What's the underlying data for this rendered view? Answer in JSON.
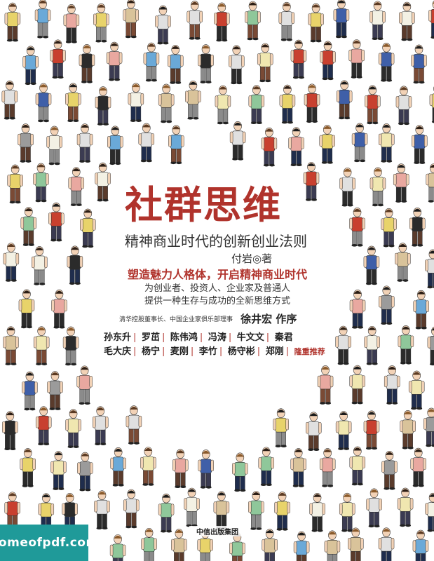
{
  "book": {
    "title": "社群思维",
    "subtitle": "精神商业时代的创新创业法则",
    "author_line": "付岩◎著",
    "tagline": "塑造魅力人格体，开启精神商业时代",
    "description_lines": [
      "为创业者、投资人、企业家及普通人",
      "提供一种生存与成功的全新思维方式"
    ],
    "preface": {
      "org": "清华控股董事长、中国企业家俱乐部理事",
      "name": "徐井宏 作序"
    },
    "recommenders_row1": [
      "孙东升",
      "罗茁",
      "陈伟鸿",
      "冯涛",
      "牛文文",
      "秦君"
    ],
    "recommenders_row2": [
      "毛大庆",
      "杨宁",
      "麦刚",
      "李竹",
      "杨守彬",
      "郑刚"
    ],
    "recommend_label": "隆重推荐",
    "publisher": "中信出版集团"
  },
  "watermark": "homeofpdf.com",
  "colors": {
    "accent_red": "#b0332c",
    "watermark_teal": "#1f9a99"
  }
}
